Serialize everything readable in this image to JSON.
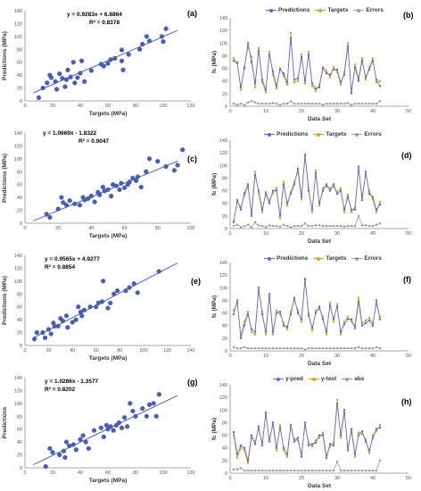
{
  "colors": {
    "scatter_point": "#4a5fb0",
    "fit_line": "#4a64b4",
    "predictions": "#5b6bd0",
    "targets": "#d4a020",
    "errors": "#9a9a9a",
    "axis": "#8c8c8c"
  },
  "chart_data": [
    {
      "label": "(a)",
      "type": "scatter",
      "xlabel": "Targets (MPa)",
      "ylabel": "Predictions (MPa)",
      "xlim": [
        0,
        120
      ],
      "ylim": [
        0,
        140
      ],
      "xticks": [
        0,
        20,
        40,
        60,
        80,
        100,
        120
      ],
      "yticks": [
        0,
        20,
        40,
        60,
        80,
        100,
        120,
        140
      ],
      "equation": "y = 0.9283x + 6.8864",
      "r2": "R² = 0.8378",
      "fit": {
        "slope": 0.9283,
        "intercept": 6.8864
      },
      "points": [
        [
          10,
          5
        ],
        [
          13,
          20
        ],
        [
          16,
          28
        ],
        [
          18,
          40
        ],
        [
          19,
          36
        ],
        [
          22,
          30
        ],
        [
          23,
          18
        ],
        [
          25,
          42
        ],
        [
          27,
          35
        ],
        [
          29,
          22
        ],
        [
          30,
          33
        ],
        [
          31,
          48
        ],
        [
          33,
          37
        ],
        [
          35,
          60
        ],
        [
          36,
          28
        ],
        [
          38,
          36
        ],
        [
          40,
          43
        ],
        [
          41,
          62
        ],
        [
          43,
          30
        ],
        [
          48,
          47
        ],
        [
          55,
          57
        ],
        [
          57,
          54
        ],
        [
          60,
          58
        ],
        [
          62,
          64
        ],
        [
          65,
          66
        ],
        [
          70,
          62
        ],
        [
          70,
          79
        ],
        [
          71,
          48
        ],
        [
          75,
          72
        ],
        [
          83,
          80
        ],
        [
          85,
          88
        ],
        [
          88,
          100
        ],
        [
          90,
          93
        ],
        [
          99,
          100
        ],
        [
          100,
          92
        ],
        [
          102,
          112
        ]
      ]
    },
    {
      "label": "(b)",
      "type": "line",
      "xlabel": "Data Set",
      "ylabel": "fc (MPa)",
      "xlim": [
        0,
        50
      ],
      "ylim": [
        0,
        140
      ],
      "xticks": [
        0,
        10,
        20,
        30,
        40,
        50
      ],
      "yticks": [
        0,
        20,
        40,
        60,
        80,
        100,
        120,
        140
      ],
      "legend": [
        "Predictions",
        "Targets",
        "Errors"
      ],
      "predictions": [
        72,
        68,
        30,
        60,
        100,
        70,
        36,
        88,
        42,
        26,
        82,
        55,
        32,
        58,
        52,
        38,
        108,
        42,
        44,
        78,
        40,
        82,
        36,
        28,
        30,
        60,
        52,
        50,
        58,
        58,
        38,
        50,
        95,
        22,
        62,
        40,
        72,
        46,
        58,
        72,
        42,
        32
      ],
      "targets": [
        76,
        70,
        26,
        62,
        94,
        78,
        30,
        92,
        38,
        22,
        86,
        50,
        28,
        60,
        48,
        34,
        116,
        38,
        40,
        82,
        36,
        86,
        32,
        24,
        34,
        62,
        56,
        46,
        62,
        54,
        34,
        54,
        100,
        20,
        66,
        44,
        76,
        42,
        62,
        76,
        38,
        40
      ],
      "errors": [
        4,
        2,
        4,
        2,
        6,
        8,
        6,
        4,
        4,
        4,
        4,
        5,
        4,
        2,
        4,
        4,
        8,
        4,
        4,
        4,
        4,
        4,
        4,
        4,
        4,
        2,
        4,
        4,
        4,
        4,
        4,
        4,
        5,
        2,
        4,
        4,
        4,
        4,
        4,
        4,
        4,
        8
      ]
    },
    {
      "label": "(c)",
      "type": "scatter",
      "xlabel": "Targets (MPa)",
      "ylabel": "Predictions (MPa)",
      "xlim": [
        0,
        100
      ],
      "ylim": [
        0,
        140
      ],
      "xticks": [
        0,
        20,
        40,
        60,
        80,
        100
      ],
      "yticks": [
        0,
        20,
        40,
        60,
        80,
        100,
        120,
        140
      ],
      "equation": "y = 1.0669x - 1.8322",
      "r2": "R² = 0.9047",
      "fit": {
        "slope": 1.0669,
        "intercept": -1.8322
      },
      "points": [
        [
          13,
          14
        ],
        [
          15,
          9
        ],
        [
          20,
          22
        ],
        [
          22,
          40
        ],
        [
          23,
          32
        ],
        [
          25,
          28
        ],
        [
          27,
          35
        ],
        [
          30,
          30
        ],
        [
          33,
          28
        ],
        [
          35,
          40
        ],
        [
          36,
          36
        ],
        [
          38,
          38
        ],
        [
          40,
          42
        ],
        [
          42,
          33
        ],
        [
          44,
          48
        ],
        [
          45,
          44
        ],
        [
          47,
          56
        ],
        [
          48,
          50
        ],
        [
          50,
          52
        ],
        [
          52,
          42
        ],
        [
          53,
          60
        ],
        [
          55,
          58
        ],
        [
          57,
          52
        ],
        [
          58,
          62
        ],
        [
          60,
          55
        ],
        [
          62,
          60
        ],
        [
          63,
          64
        ],
        [
          65,
          70
        ],
        [
          67,
          66
        ],
        [
          68,
          72
        ],
        [
          70,
          56
        ],
        [
          73,
          80
        ],
        [
          75,
          100
        ],
        [
          80,
          96
        ],
        [
          85,
          88
        ],
        [
          90,
          82
        ],
        [
          92,
          90
        ],
        [
          95,
          114
        ]
      ]
    },
    {
      "label": "(d)",
      "type": "line",
      "xlabel": "Data Set",
      "ylabel": "fc (MPa)",
      "xlim": [
        0,
        50
      ],
      "ylim": [
        0,
        140
      ],
      "xticks": [
        0,
        10,
        20,
        30,
        40,
        50
      ],
      "yticks": [
        0,
        20,
        40,
        60,
        80,
        100,
        120,
        140
      ],
      "legend": [
        "Predictions",
        "Targets",
        "Errors"
      ],
      "predictions": [
        10,
        45,
        30,
        56,
        70,
        20,
        85,
        60,
        30,
        55,
        40,
        60,
        60,
        20,
        70,
        40,
        55,
        70,
        95,
        50,
        115,
        60,
        30,
        88,
        40,
        60,
        70,
        60,
        70,
        55,
        60,
        30,
        50,
        30,
        30,
        98,
        45,
        90,
        55,
        50,
        30,
        38
      ],
      "targets": [
        12,
        42,
        34,
        52,
        66,
        24,
        90,
        56,
        26,
        58,
        44,
        56,
        64,
        16,
        74,
        36,
        58,
        74,
        90,
        46,
        118,
        64,
        26,
        92,
        36,
        64,
        66,
        64,
        66,
        58,
        64,
        26,
        54,
        26,
        34,
        94,
        50,
        86,
        60,
        46,
        26,
        42
      ],
      "errors": [
        4,
        6,
        2,
        4,
        6,
        2,
        10,
        5,
        4,
        2,
        5,
        4,
        4,
        3,
        6,
        4,
        2,
        4,
        4,
        4,
        8,
        4,
        4,
        5,
        5,
        4,
        4,
        4,
        4,
        4,
        4,
        3,
        4,
        4,
        4,
        20,
        5,
        5,
        4,
        4,
        6,
        8
      ]
    },
    {
      "label": "(e)",
      "type": "scatter",
      "xlabel": "Targets (MPa)",
      "ylabel": "Predictions (MPa)",
      "xlim": [
        0,
        140
      ],
      "ylim": [
        0,
        140
      ],
      "xticks": [
        0,
        20,
        40,
        60,
        80,
        100,
        120,
        140
      ],
      "yticks": [
        0,
        20,
        40,
        60,
        80,
        100,
        120,
        140
      ],
      "equation": "y = 0.9565x + 4.9277",
      "r2": "R² = 0.8854",
      "fit": {
        "slope": 0.9565,
        "intercept": 4.9277
      },
      "points": [
        [
          8,
          10
        ],
        [
          10,
          20
        ],
        [
          15,
          20
        ],
        [
          17,
          12
        ],
        [
          20,
          25
        ],
        [
          22,
          18
        ],
        [
          24,
          35
        ],
        [
          25,
          30
        ],
        [
          28,
          30
        ],
        [
          30,
          42
        ],
        [
          32,
          38
        ],
        [
          35,
          46
        ],
        [
          36,
          28
        ],
        [
          40,
          36
        ],
        [
          43,
          40
        ],
        [
          45,
          60
        ],
        [
          47,
          52
        ],
        [
          48,
          46
        ],
        [
          50,
          55
        ],
        [
          55,
          60
        ],
        [
          60,
          60
        ],
        [
          62,
          66
        ],
        [
          65,
          68
        ],
        [
          66,
          100
        ],
        [
          70,
          58
        ],
        [
          72,
          66
        ],
        [
          75,
          80
        ],
        [
          78,
          85
        ],
        [
          85,
          85
        ],
        [
          88,
          90
        ],
        [
          92,
          96
        ],
        [
          95,
          82
        ],
        [
          113,
          115
        ]
      ]
    },
    {
      "label": "(f)",
      "type": "line",
      "xlabel": "Data Set",
      "ylabel": "fc (MPa)",
      "xlim": [
        0,
        50
      ],
      "ylim": [
        0,
        140
      ],
      "xticks": [
        0,
        10,
        20,
        30,
        40,
        50
      ],
      "yticks": [
        0,
        20,
        40,
        60,
        80,
        100,
        120,
        140
      ],
      "legend": [
        "Predictions",
        "Targets",
        "Errors"
      ],
      "predictions": [
        58,
        80,
        20,
        40,
        58,
        34,
        30,
        100,
        58,
        30,
        90,
        30,
        60,
        62,
        40,
        38,
        58,
        84,
        60,
        50,
        114,
        56,
        36,
        60,
        70,
        50,
        30,
        72,
        50,
        70,
        30,
        42,
        50,
        50,
        36,
        78,
        40,
        44,
        48,
        40,
        80,
        50
      ],
      "targets": [
        64,
        76,
        24,
        46,
        62,
        30,
        26,
        96,
        62,
        26,
        86,
        26,
        64,
        58,
        44,
        34,
        62,
        80,
        64,
        46,
        112,
        60,
        32,
        64,
        66,
        54,
        26,
        76,
        46,
        74,
        26,
        46,
        54,
        46,
        40,
        84,
        44,
        48,
        52,
        44,
        74,
        54
      ],
      "errors": [
        6,
        4,
        4,
        6,
        4,
        4,
        4,
        4,
        4,
        4,
        4,
        4,
        4,
        4,
        4,
        4,
        4,
        4,
        4,
        4,
        2,
        4,
        4,
        4,
        4,
        4,
        4,
        4,
        4,
        4,
        4,
        4,
        4,
        4,
        4,
        6,
        4,
        4,
        4,
        4,
        6,
        4
      ]
    },
    {
      "label": "(g)",
      "type": "scatter",
      "xlabel": "Targets (MPa)",
      "ylabel": "Predictions",
      "xlim": [
        0,
        120
      ],
      "ylim": [
        0,
        140
      ],
      "xticks": [
        0,
        20,
        40,
        60,
        80,
        100,
        120
      ],
      "yticks": [
        0,
        20,
        40,
        60,
        80,
        100,
        120,
        140
      ],
      "equation": "y = 1.0286x - 1.3577",
      "r2": "R² = 0.8202",
      "fit": {
        "slope": 1.0286,
        "intercept": -1.3577
      },
      "points": [
        [
          15,
          2
        ],
        [
          18,
          30
        ],
        [
          20,
          24
        ],
        [
          25,
          20
        ],
        [
          28,
          26
        ],
        [
          29,
          16
        ],
        [
          30,
          40
        ],
        [
          32,
          34
        ],
        [
          35,
          36
        ],
        [
          37,
          28
        ],
        [
          40,
          44
        ],
        [
          42,
          50
        ],
        [
          44,
          40
        ],
        [
          46,
          30
        ],
        [
          50,
          58
        ],
        [
          55,
          62
        ],
        [
          57,
          48
        ],
        [
          59,
          66
        ],
        [
          60,
          60
        ],
        [
          62,
          64
        ],
        [
          64,
          58
        ],
        [
          66,
          66
        ],
        [
          68,
          70
        ],
        [
          70,
          62
        ],
        [
          72,
          78
        ],
        [
          74,
          64
        ],
        [
          76,
          100
        ],
        [
          78,
          88
        ],
        [
          80,
          80
        ],
        [
          85,
          92
        ],
        [
          88,
          80
        ],
        [
          90,
          98
        ],
        [
          93,
          100
        ],
        [
          95,
          80
        ],
        [
          97,
          114
        ]
      ]
    },
    {
      "label": "(h)",
      "type": "line",
      "xlabel": "Data Set",
      "ylabel": "fc (MPa)",
      "xlim": [
        0,
        50
      ],
      "ylim": [
        0,
        140
      ],
      "xticks": [
        0,
        10,
        20,
        30,
        40,
        50
      ],
      "yticks": [
        0,
        20,
        40,
        60,
        80,
        100,
        120,
        140
      ],
      "legend": [
        "y-pred",
        "y-test",
        "abs"
      ],
      "predictions": [
        65,
        30,
        44,
        40,
        20,
        60,
        46,
        74,
        44,
        96,
        50,
        80,
        40,
        72,
        40,
        30,
        76,
        50,
        56,
        26,
        80,
        44,
        46,
        48,
        60,
        60,
        24,
        46,
        44,
        110,
        60,
        100,
        36,
        70,
        30,
        60,
        66,
        50,
        36,
        56,
        70,
        72
      ],
      "targets": [
        60,
        24,
        40,
        36,
        16,
        56,
        50,
        70,
        48,
        92,
        54,
        76,
        36,
        76,
        36,
        26,
        72,
        54,
        52,
        30,
        76,
        48,
        42,
        52,
        56,
        64,
        28,
        42,
        48,
        116,
        56,
        96,
        40,
        66,
        26,
        64,
        62,
        54,
        32,
        60,
        66,
        76
      ],
      "errors": [
        6,
        6,
        8,
        4,
        4,
        4,
        4,
        4,
        4,
        4,
        4,
        4,
        4,
        4,
        4,
        4,
        4,
        4,
        4,
        4,
        4,
        4,
        4,
        4,
        4,
        4,
        4,
        4,
        4,
        18,
        4,
        4,
        4,
        4,
        4,
        4,
        4,
        4,
        4,
        4,
        4,
        20
      ]
    }
  ]
}
